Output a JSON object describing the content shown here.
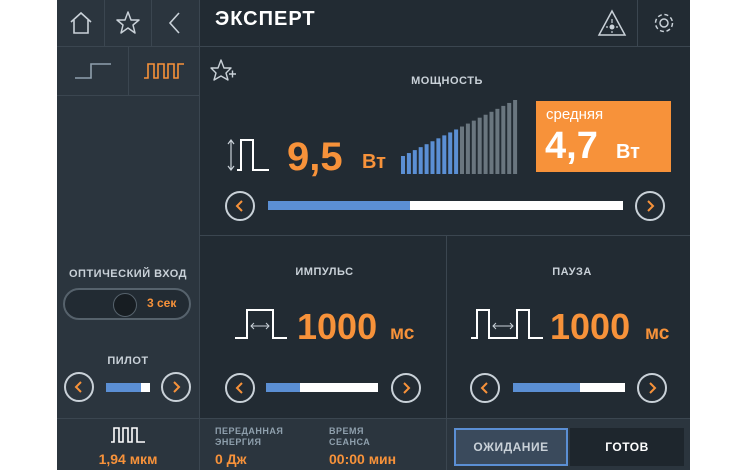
{
  "header": {
    "title": "ЭКСПЕРТ"
  },
  "power": {
    "label": "МОЩНОСТЬ",
    "value": "9,5",
    "unit": "Вт",
    "avg_label": "средняя",
    "avg_value": "4,7",
    "avg_unit": "Вт",
    "level_fraction": 0.4,
    "bars_total": 20,
    "bars_active": 10
  },
  "optical": {
    "label": "ОПТИЧЕСКИЙ ВХОД",
    "value": "3 сек"
  },
  "pilot": {
    "label": "ПИЛОТ",
    "level_fraction": 0.8
  },
  "pulse": {
    "label": "ИМПУЛЬС",
    "value": "1000",
    "unit": "мс",
    "level_fraction": 0.3
  },
  "pause": {
    "label": "ПАУЗА",
    "value": "1000",
    "unit": "мс",
    "level_fraction": 0.6
  },
  "status": {
    "wavelength": "1,94 мкм",
    "energy_label": "ПЕРЕДАННАЯ\nЭНЕРГИЯ",
    "energy_value": "0 Дж",
    "time_label": "ВРЕМЯ\nСЕАНСА",
    "time_value": "00:00 мин",
    "wait_label": "ОЖИДАНИЕ",
    "ready_label": "ГОТОВ"
  },
  "colors": {
    "accent": "#f7923a",
    "blue": "#5b8fd4",
    "bg": "#222b33",
    "panel": "#2b353e"
  }
}
